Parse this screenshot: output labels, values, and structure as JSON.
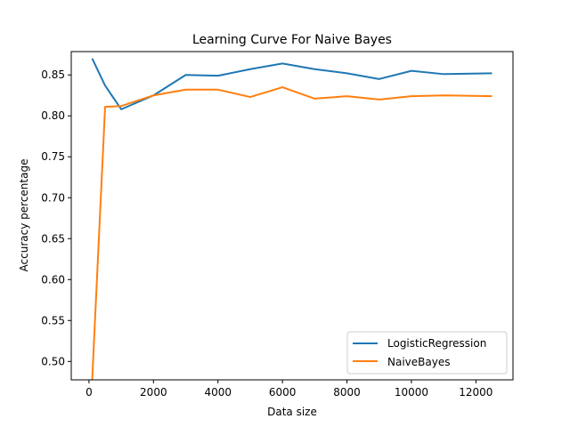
{
  "chart_data": {
    "type": "line",
    "title": "Learning Curve For Naive Bayes",
    "xlabel": "Data size",
    "ylabel": "Accuracy percentage",
    "xlim": [
      -550,
      13150
    ],
    "ylim": [
      0.4775,
      0.8785
    ],
    "xticks": [
      0,
      2000,
      4000,
      6000,
      8000,
      10000,
      12000
    ],
    "xtick_labels": [
      "0",
      "2000",
      "4000",
      "6000",
      "8000",
      "10000",
      "12000"
    ],
    "yticks": [
      0.5,
      0.55,
      0.6,
      0.65,
      0.7,
      0.75,
      0.8,
      0.85
    ],
    "ytick_labels": [
      "0.50",
      "0.55",
      "0.60",
      "0.65",
      "0.70",
      "0.75",
      "0.80",
      "0.85"
    ],
    "legend_position": "lower-right",
    "grid": false,
    "x": [
      100,
      500,
      1000,
      2000,
      3000,
      4000,
      5000,
      6000,
      7000,
      8000,
      9000,
      10000,
      11000,
      12500
    ],
    "series": [
      {
        "name": "LogisticRegression",
        "color": "#1f77b4",
        "values": [
          0.87,
          0.837,
          0.808,
          0.825,
          0.85,
          0.849,
          0.857,
          0.864,
          0.857,
          0.852,
          0.845,
          0.855,
          0.851,
          0.852
        ]
      },
      {
        "name": "NaiveBayes",
        "color": "#ff7f0e",
        "values": [
          0.478,
          0.811,
          0.812,
          0.825,
          0.832,
          0.832,
          0.823,
          0.835,
          0.821,
          0.824,
          0.82,
          0.824,
          0.825,
          0.824
        ]
      }
    ]
  }
}
